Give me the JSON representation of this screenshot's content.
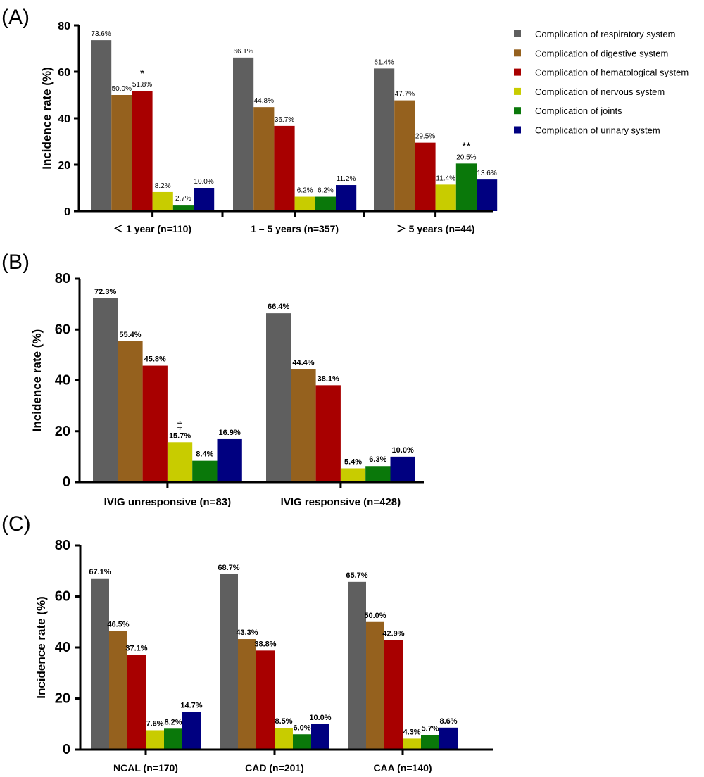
{
  "legend": {
    "items": [
      {
        "label": "Complication of respiratory system",
        "color": "#5f5f5f"
      },
      {
        "label": "Complication of digestive system",
        "color": "#95611e"
      },
      {
        "label": "Complication of hematological system",
        "color": "#a80000"
      },
      {
        "label": "Complication of nervous system",
        "color": "#c8cc00"
      },
      {
        "label": "Complication of joints",
        "color": "#0a780a"
      },
      {
        "label": "Complication of urinary system",
        "color": "#000080"
      }
    ]
  },
  "chart_data": [
    {
      "panel": "(A)",
      "type": "bar",
      "ylabel": "Incidence rate (%)",
      "ylim": [
        0,
        80
      ],
      "yticks": [
        0,
        20,
        40,
        60,
        80
      ],
      "categories": [
        "＜ 1 year (n=110)",
        "1 – 5 years (n=357)",
        "＞ 5 years (n=44)"
      ],
      "series": [
        {
          "name": "Complication of respiratory system",
          "values": [
            73.6,
            66.1,
            61.4
          ],
          "labels": [
            "73.6%",
            "66.1%",
            "61.4%"
          ]
        },
        {
          "name": "Complication of digestive system",
          "values": [
            50.0,
            44.8,
            47.7
          ],
          "labels": [
            "50.0%",
            "44.8%",
            "47.7%"
          ]
        },
        {
          "name": "Complication of hematological system",
          "values": [
            51.8,
            36.7,
            29.5
          ],
          "labels": [
            "51.8%",
            "36.7%",
            "29.5%"
          ]
        },
        {
          "name": "Complication of nervous system",
          "values": [
            8.2,
            6.2,
            11.4
          ],
          "labels": [
            "8.2%",
            "6.2%",
            "11.4%"
          ]
        },
        {
          "name": "Complication of joints",
          "values": [
            2.7,
            6.2,
            20.5
          ],
          "labels": [
            "2.7%",
            "6.2%",
            "20.5%"
          ]
        },
        {
          "name": "Complication of urinary system",
          "values": [
            10.0,
            11.2,
            13.6
          ],
          "labels": [
            "10.0%",
            "11.2%",
            "13.6%"
          ]
        }
      ],
      "annotations": [
        {
          "category": 0,
          "series": 2,
          "text": "*"
        },
        {
          "category": 2,
          "series": 4,
          "text": "**"
        }
      ]
    },
    {
      "panel": "(B)",
      "type": "bar",
      "ylabel": "Incidence rate  (%)",
      "ylim": [
        0,
        80
      ],
      "yticks": [
        0,
        20,
        40,
        60,
        80
      ],
      "categories": [
        "IVIG unresponsive (n=83)",
        "IVIG responsive (n=428)"
      ],
      "series": [
        {
          "name": "Complication of respiratory system",
          "values": [
            72.3,
            66.4
          ],
          "labels": [
            "72.3%",
            "66.4%"
          ]
        },
        {
          "name": "Complication of digestive system",
          "values": [
            55.4,
            44.4
          ],
          "labels": [
            "55.4%",
            "44.4%"
          ]
        },
        {
          "name": "Complication of hematological system",
          "values": [
            45.8,
            38.1
          ],
          "labels": [
            "45.8%",
            "38.1%"
          ]
        },
        {
          "name": "Complication of nervous system",
          "values": [
            15.7,
            5.4
          ],
          "labels": [
            "15.7%",
            "5.4%"
          ]
        },
        {
          "name": "Complication of joints",
          "values": [
            8.4,
            6.3
          ],
          "labels": [
            "8.4%",
            "6.3%"
          ]
        },
        {
          "name": "Complication of urinary system",
          "values": [
            16.9,
            10.0
          ],
          "labels": [
            "16.9%",
            "10.0%"
          ]
        }
      ],
      "annotations": [
        {
          "category": 0,
          "series": 3,
          "text": "‡"
        }
      ]
    },
    {
      "panel": "(C)",
      "type": "bar",
      "ylabel": "Incidence rate (%)",
      "ylim": [
        0,
        80
      ],
      "yticks": [
        0,
        20,
        40,
        60,
        80
      ],
      "categories": [
        "NCAL (n=170)",
        "CAD (n=201)",
        "CAA (n=140)"
      ],
      "series": [
        {
          "name": "Complication of respiratory system",
          "values": [
            67.1,
            68.7,
            65.7
          ],
          "labels": [
            "67.1%",
            "68.7%",
            "65.7%"
          ]
        },
        {
          "name": "Complication of digestive system",
          "values": [
            46.5,
            43.3,
            50.0
          ],
          "labels": [
            "46.5%",
            "43.3%",
            "50.0%"
          ]
        },
        {
          "name": "Complication of hematological system",
          "values": [
            37.1,
            38.8,
            42.9
          ],
          "labels": [
            "37.1%",
            "38.8%",
            "42.9%"
          ]
        },
        {
          "name": "Complication of nervous system",
          "values": [
            7.6,
            8.5,
            4.3
          ],
          "labels": [
            "7.6%",
            "8.5%",
            "4.3%"
          ]
        },
        {
          "name": "Complication of joints",
          "values": [
            8.2,
            6.0,
            5.7
          ],
          "labels": [
            "8.2%",
            "6.0%",
            "5.7%"
          ]
        },
        {
          "name": "Complication of urinary system",
          "values": [
            14.7,
            10.0,
            8.6
          ],
          "labels": [
            "14.7%",
            "10.0%",
            "8.6%"
          ]
        }
      ],
      "annotations": []
    }
  ]
}
